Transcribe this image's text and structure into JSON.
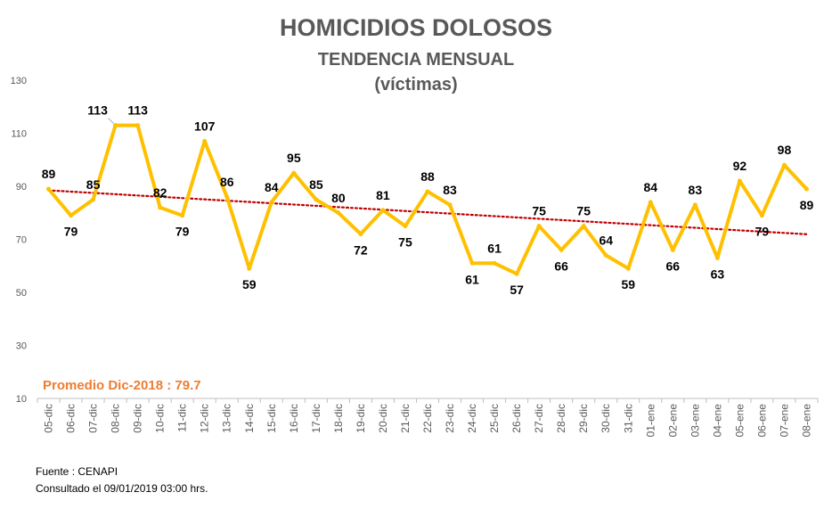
{
  "chart_data": {
    "type": "line",
    "title": "HOMICIDIOS DOLOSOS",
    "subtitle": "TENDENCIA MENSUAL",
    "subtitle2": "(víctimas)",
    "categories": [
      "05-dic",
      "06-dic",
      "07-dic",
      "08-dic",
      "09-dic",
      "10-dic",
      "11-dic",
      "12-dic",
      "13-dic",
      "14-dic",
      "15-dic",
      "16-dic",
      "17-dic",
      "18-dic",
      "19-dic",
      "20-dic",
      "21-dic",
      "22-dic",
      "23-dic",
      "24-dic",
      "25-dic",
      "26-dic",
      "27-dic",
      "28-dic",
      "29-dic",
      "30-dic",
      "31-dic",
      "01-ene",
      "02-ene",
      "03-ene",
      "04-ene",
      "05-ene",
      "06-ene",
      "07-ene",
      "08-ene"
    ],
    "series": [
      {
        "values": [
          89,
          79,
          85,
          113,
          113,
          82,
          79,
          107,
          86,
          59,
          84,
          95,
          85,
          80,
          72,
          81,
          75,
          88,
          83,
          61,
          61,
          57,
          75,
          66,
          75,
          64,
          59,
          84,
          66,
          83,
          63,
          92,
          79,
          98,
          89
        ]
      }
    ],
    "trendline": {
      "type": "linear",
      "style": "dotted"
    },
    "ylim": [
      10,
      130
    ],
    "yticks": [
      10,
      30,
      50,
      70,
      90,
      110,
      130
    ],
    "xlabel": "",
    "ylabel": "",
    "grid": false,
    "legend": "none",
    "colors": {
      "line": "#FFC000",
      "trend": "#C00000",
      "title": "#595959",
      "average": "#ED7D31"
    },
    "annotation": "Promedio Dic-2018 : 79.7",
    "source": "Fuente : CENAPI",
    "consulted": "Consultado el 09/01/2019  03:00  hrs."
  }
}
